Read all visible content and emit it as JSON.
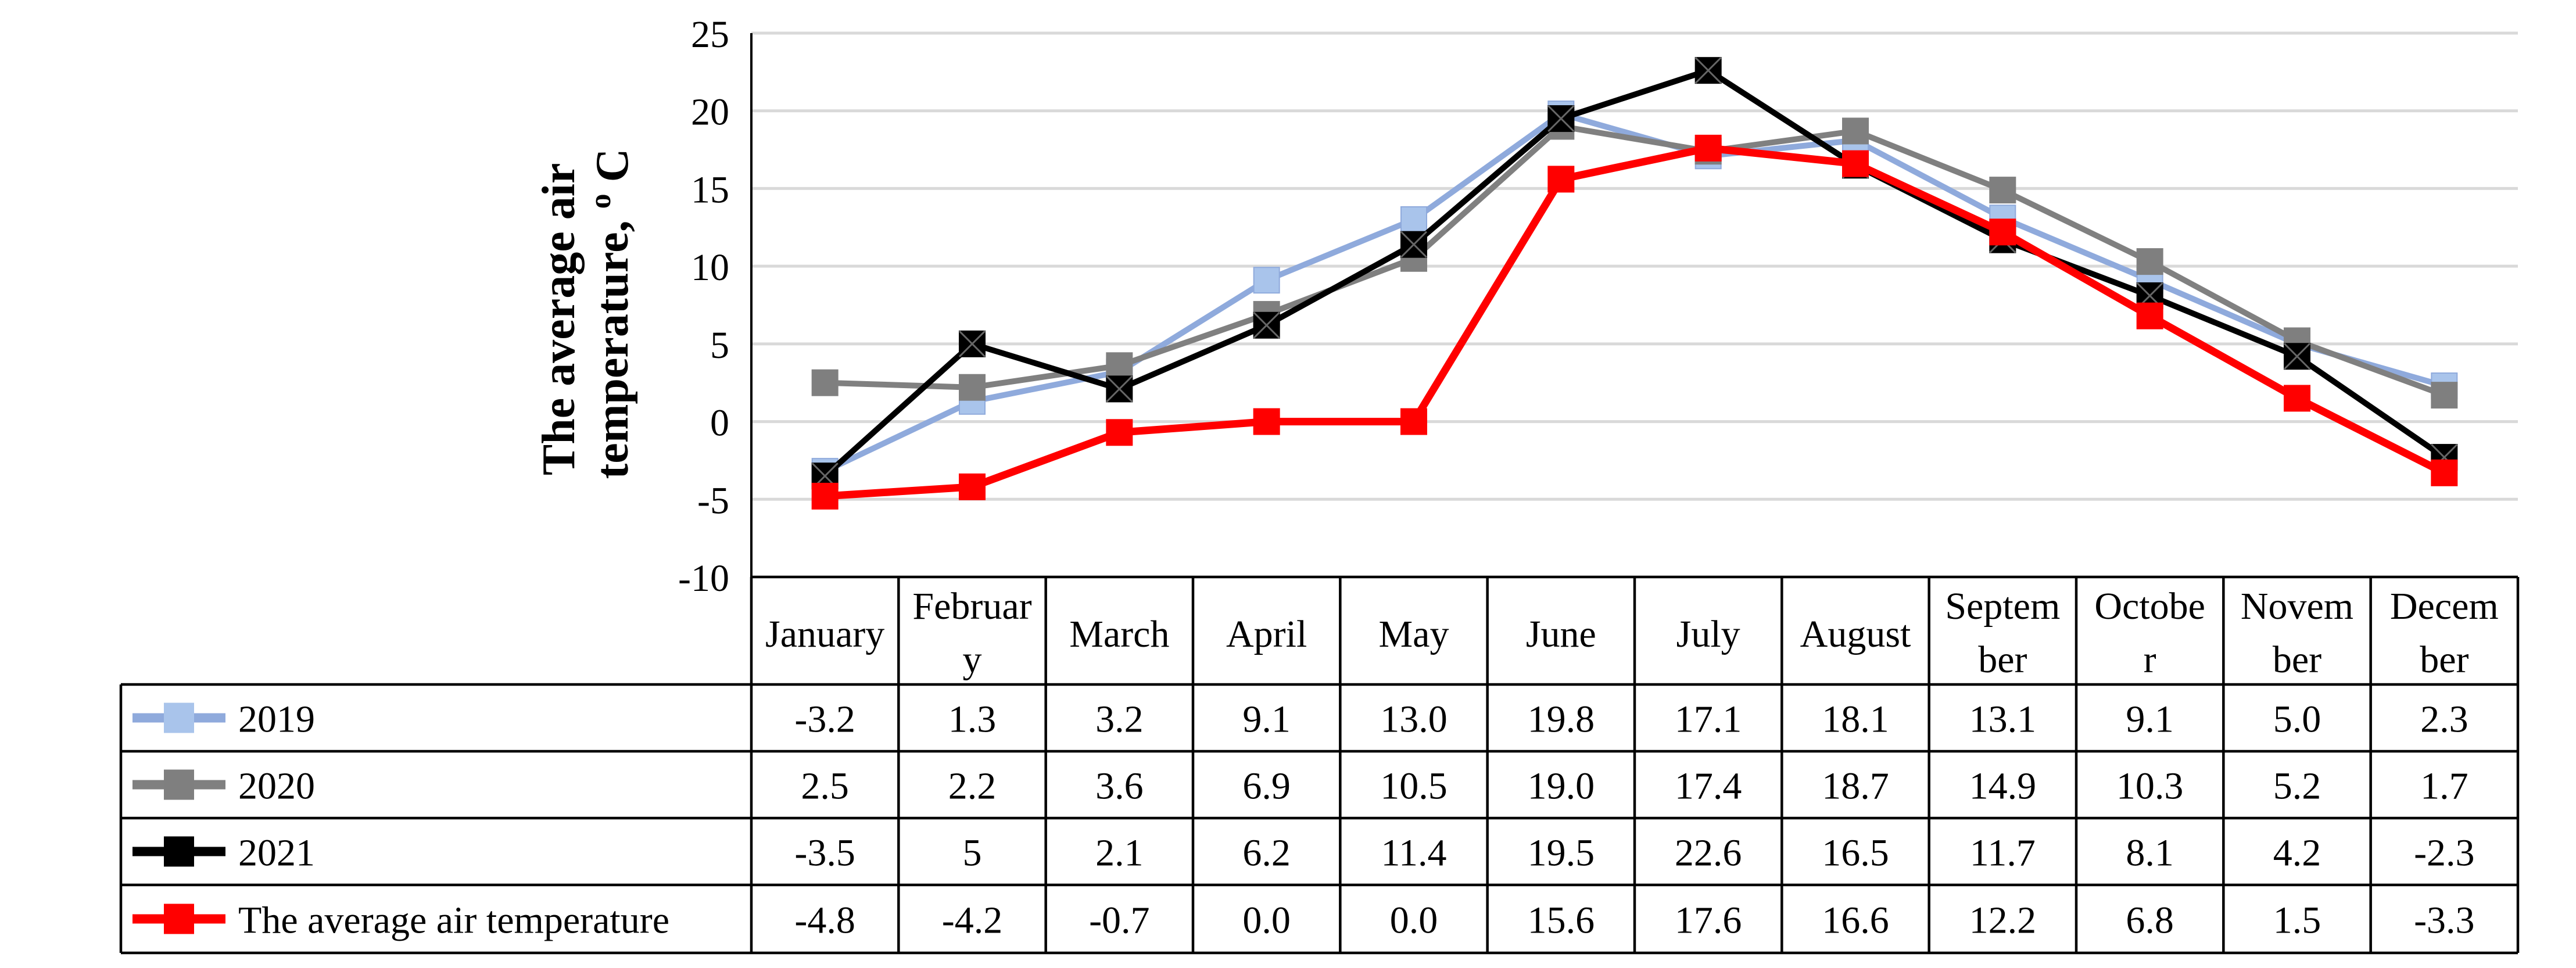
{
  "chart_data": {
    "type": "line",
    "ylabel_line1": "The average air",
    "ylabel_line2": "temperature, ",
    "ylabel_sup": "o",
    "ylabel_unit": "C",
    "ylim": [
      -10,
      25
    ],
    "yticks": [
      -10,
      -5,
      0,
      5,
      10,
      15,
      20,
      25
    ],
    "grid": true,
    "legend_placement": "data-table-left",
    "categories": [
      [
        "January"
      ],
      [
        "Februar",
        "y"
      ],
      [
        "March"
      ],
      [
        "April"
      ],
      [
        "May"
      ],
      [
        "June"
      ],
      [
        "July"
      ],
      [
        "August"
      ],
      [
        "Septem",
        "ber"
      ],
      [
        "Octobe",
        "r"
      ],
      [
        "Novem",
        "ber"
      ],
      [
        "Decem",
        "ber"
      ]
    ],
    "series": [
      {
        "name": "2019",
        "color": "#8faadc",
        "marker_color": "#a9c4eb",
        "values": [
          -3.2,
          1.3,
          3.2,
          9.1,
          13.0,
          19.8,
          17.1,
          18.1,
          13.1,
          9.1,
          5.0,
          2.3
        ],
        "labels": [
          "-3.2",
          "1.3",
          "3.2",
          "9.1",
          "13.0",
          "19.8",
          "17.1",
          "18.1",
          "13.1",
          "9.1",
          "5.0",
          "2.3"
        ]
      },
      {
        "name": "2020",
        "color": "#808080",
        "marker_color": "#7f7f7f",
        "values": [
          2.5,
          2.2,
          3.6,
          6.9,
          10.5,
          19.0,
          17.4,
          18.7,
          14.9,
          10.3,
          5.2,
          1.7
        ],
        "labels": [
          "2.5",
          "2.2",
          "3.6",
          "6.9",
          "10.5",
          "19.0",
          "17.4",
          "18.7",
          "14.9",
          "10.3",
          "5.2",
          "1.7"
        ]
      },
      {
        "name": "2021",
        "color": "#000000",
        "marker_color": "#000000",
        "values": [
          -3.5,
          5,
          2.1,
          6.2,
          11.4,
          19.5,
          22.6,
          16.5,
          11.7,
          8.1,
          4.2,
          -2.3
        ],
        "labels": [
          "-3.5",
          "5",
          "2.1",
          "6.2",
          "11.4",
          "19.5",
          "22.6",
          "16.5",
          "11.7",
          "8.1",
          "4.2",
          "-2.3"
        ]
      },
      {
        "name": "The average air temperature",
        "color": "#ff0000",
        "marker_color": "#ff0000",
        "values": [
          -4.8,
          -4.2,
          -0.7,
          0.0,
          0.0,
          15.6,
          17.6,
          16.6,
          12.2,
          6.8,
          1.5,
          -3.3
        ],
        "labels": [
          "-4.8",
          "-4.2",
          "-0.7",
          "0.0",
          "0.0",
          "15.6",
          "17.6",
          "16.6",
          "12.2",
          "6.8",
          "1.5",
          "-3.3"
        ]
      }
    ]
  }
}
